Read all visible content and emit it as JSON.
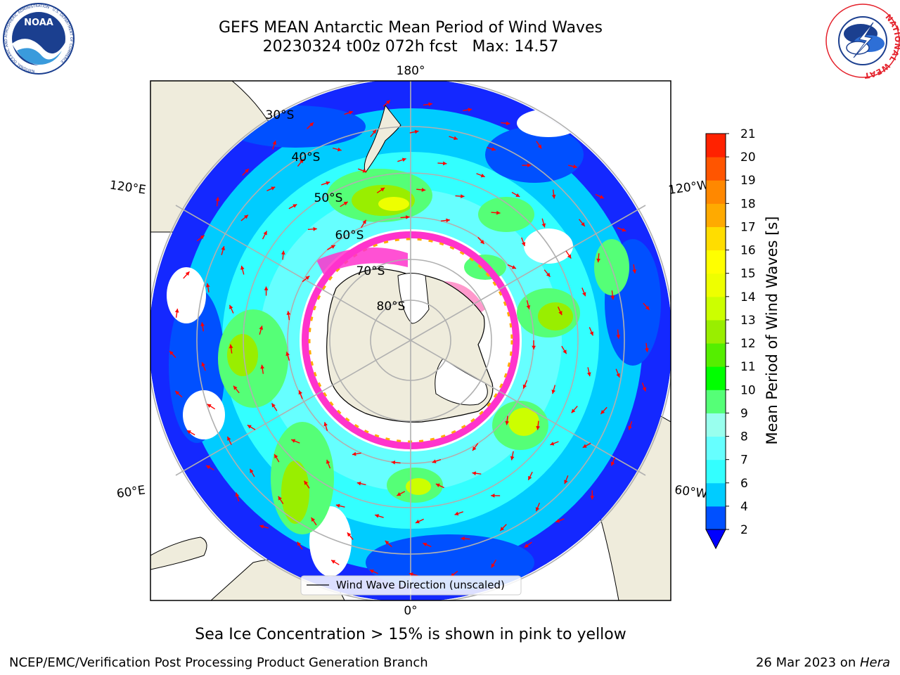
{
  "header": {
    "title_line1": "GEFS MEAN Antarctic Mean Period of Wind Waves",
    "title_line2": "20230324 t00z 072h fcst   Max: 14.57"
  },
  "logos": {
    "left": {
      "name": "NOAA",
      "ring_text": "NATIONAL OCEANIC AND ATMOSPHERIC ADMINISTRATION · U.S. DEPARTMENT OF COMMERCE",
      "color": "#1b3f8f"
    },
    "right": {
      "ring_text": "NATIONAL WEATHER SERVICE",
      "color": "#e4202a"
    }
  },
  "map": {
    "longitude_labels": {
      "top": "180°",
      "bottom": "0°",
      "upper_left": "120°E",
      "upper_right": "120°W",
      "lower_left": "60°E",
      "lower_right": "60°W"
    },
    "latitude_labels": [
      "30°S",
      "40°S",
      "50°S",
      "60°S",
      "70°S",
      "80°S"
    ],
    "legend_label": "Wind Wave Direction (unscaled)",
    "colors": {
      "land": "#efecdc",
      "coast": "#000000",
      "grid": "#b0b0b0",
      "arrow": "#ff0000",
      "sea_ice": "#ff33cc"
    }
  },
  "colorbar": {
    "label": "Mean Period of Wind Waves [s]",
    "ticks": [
      "2",
      "4",
      "6",
      "7",
      "8",
      "9",
      "10",
      "11",
      "12",
      "13",
      "14",
      "15",
      "16",
      "17",
      "18",
      "19",
      "20",
      "21"
    ],
    "colors": [
      "#0050ff",
      "#00ccff",
      "#33ffff",
      "#66ffff",
      "#99ffee",
      "#55ff77",
      "#00ff00",
      "#55ee00",
      "#99ee00",
      "#ccff00",
      "#eeff00",
      "#ffff00",
      "#ffdd00",
      "#ffaa00",
      "#ff8800",
      "#ff5500",
      "#ff2200",
      "#ff0000"
    ],
    "under_color": "#0000ff"
  },
  "footer": {
    "note": "Sea Ice Concentration > 15% is shown in pink to yellow",
    "left_credit": "NCEP/EMC/Verification Post Processing Product Generation Branch",
    "right_date": "26 Mar 2023 on ",
    "right_machine": "Hera"
  }
}
